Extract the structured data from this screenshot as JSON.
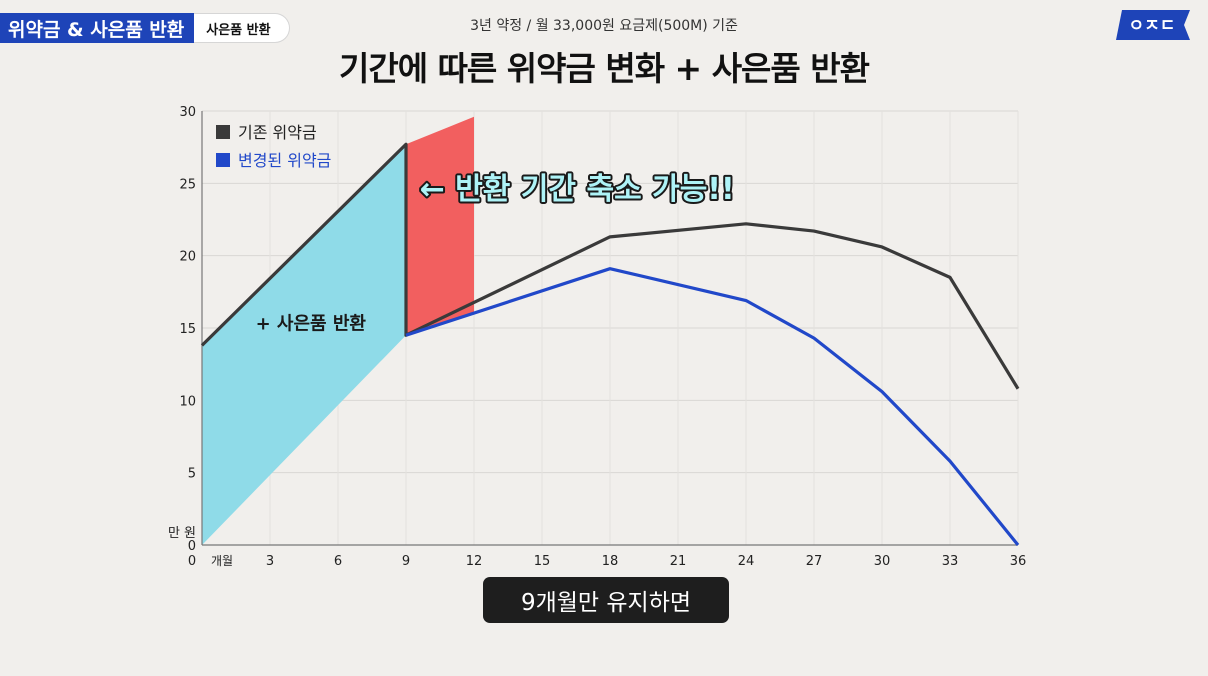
{
  "header": {
    "tag_main": "위약금 & 사은품 반환",
    "tag_sub": "사은품 반환",
    "subtitle": "3년 약정 / 월 33,000원 요금제(500M) 기준",
    "logo_text": "ㅇㅈㄷ",
    "logo_color": "#1e44b8"
  },
  "caption": "9개월만 유지하면",
  "chart_data": {
    "type": "line",
    "title": "기간에 따른 위약금 변화 + 사은품 반환",
    "y_unit_label": "만 원",
    "x_unit_label": "개월",
    "xlim": [
      0,
      36
    ],
    "ylim": [
      0,
      30
    ],
    "x_ticks": [
      0,
      3,
      6,
      9,
      12,
      15,
      18,
      21,
      24,
      27,
      30,
      33,
      36
    ],
    "y_ticks": [
      0,
      5,
      10,
      15,
      20,
      25,
      30
    ],
    "grid": true,
    "legend_position": "top-left",
    "series": [
      {
        "name": "기존 위약금",
        "color": "#3a3a3a",
        "x": [
          0,
          9,
          9,
          18,
          24,
          27,
          30,
          33,
          36
        ],
        "y": [
          13.8,
          27.7,
          14.5,
          21.3,
          22.2,
          21.7,
          20.6,
          18.5,
          10.8
        ]
      },
      {
        "name": "변경된 위약금",
        "color": "#2148c9",
        "x": [
          9,
          18,
          24,
          27,
          30,
          33,
          36
        ],
        "y": [
          14.5,
          19.1,
          16.9,
          14.3,
          10.6,
          5.8,
          0
        ]
      }
    ],
    "regions": [
      {
        "name": "gift-return-area",
        "label": "+ 사은품 반환",
        "color": "#8fdbe8",
        "polygon": [
          [
            0,
            13.8
          ],
          [
            9,
            27.7
          ],
          [
            9,
            14.5
          ],
          [
            0,
            0
          ]
        ]
      },
      {
        "name": "reduced-return-area",
        "color": "#f25f5f",
        "polygon": [
          [
            9,
            27.7
          ],
          [
            12,
            29.6
          ],
          [
            12,
            16.0
          ],
          [
            9,
            14.5
          ]
        ]
      }
    ],
    "annotation": {
      "text": "← 반환 기간 축소 가능!!",
      "color": "#aef3f7",
      "outline": "#1a1a1a"
    }
  }
}
